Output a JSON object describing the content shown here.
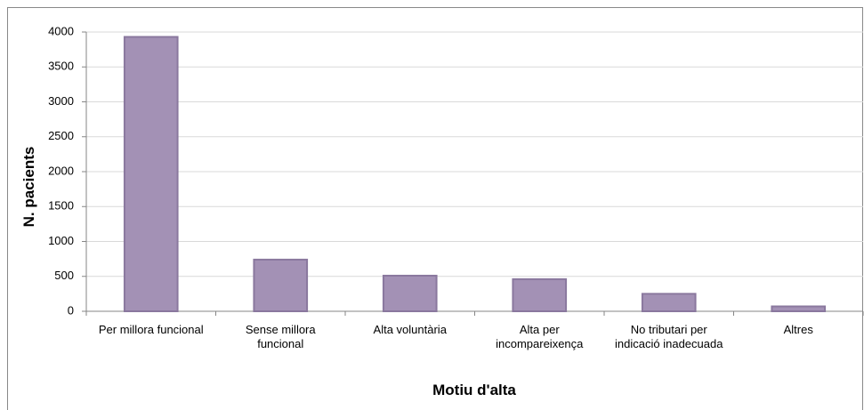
{
  "chart_data": {
    "type": "bar",
    "categories": [
      "Per millora funcional",
      "Sense millora funcional",
      "Alta voluntària",
      "Alta per incompareixença",
      "No tributari per indicació inadecuada",
      "Altres"
    ],
    "values": [
      3930,
      740,
      510,
      460,
      250,
      70
    ],
    "color": "#a391b5",
    "x_label": "Motiu d'alta",
    "y_label": "N. pacients",
    "ylim": [
      0,
      4000
    ],
    "yticks": [
      0,
      500,
      1000,
      1500,
      2000,
      2500,
      3000,
      3500,
      4000
    ],
    "grid": true
  }
}
